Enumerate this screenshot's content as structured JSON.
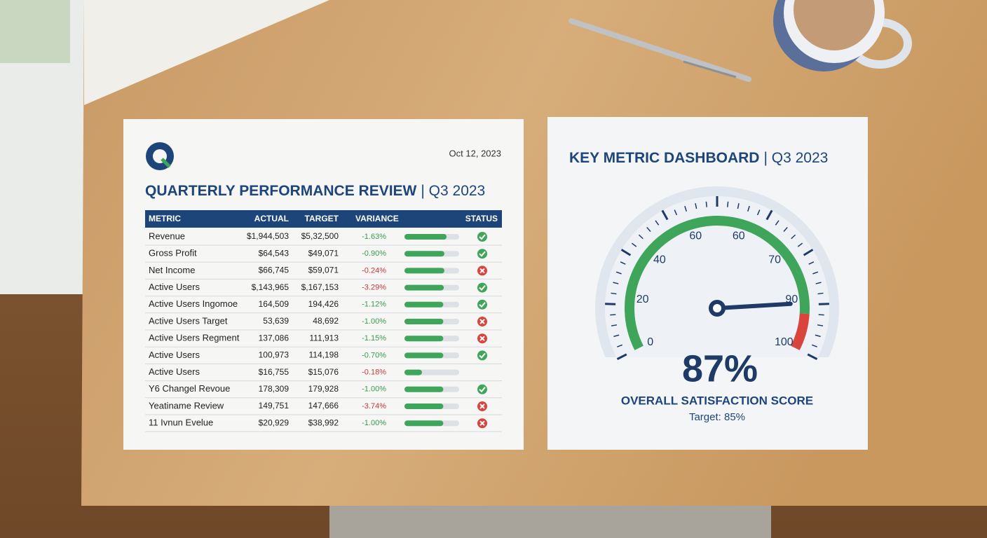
{
  "report": {
    "date": "Oct 12, 2023",
    "title": "QUARTERLY PERFORMANCE REVIEW",
    "period": "| Q3 2023",
    "table": {
      "headers": [
        "METRIC",
        "ACTUAL",
        "TARGET",
        "VARIANCE",
        "STATUS"
      ],
      "rows": [
        {
          "metric": "Revenue",
          "actual": "$1,944,503",
          "target": "$5,32,500",
          "variance": "-1.63%",
          "variance_color": "#3a9a4e",
          "progress": 77,
          "met": true
        },
        {
          "metric": "Gross Profit",
          "actual": "$64,543",
          "target": "$49,071",
          "variance": "-0.90%",
          "variance_color": "#3a9a4e",
          "progress": 73,
          "met": true
        },
        {
          "metric": "Net Income",
          "actual": "$66,745",
          "target": "$59,071",
          "variance": "-0.24%",
          "variance_color": "#c8383a",
          "progress": 73,
          "met": false
        },
        {
          "metric": "Active Users",
          "actual": "$,143,965",
          "target": "$,167,153",
          "variance": "-3.29%",
          "variance_color": "#c8383a",
          "progress": 72,
          "met": true
        },
        {
          "metric": "Active Users Ingomoe",
          "actual": "164,509",
          "target": "194,426",
          "variance": "-1.12%",
          "variance_color": "#3a9a4e",
          "progress": 71,
          "met": true
        },
        {
          "metric": "Active Users Target",
          "actual": "53,639",
          "target": "48,692",
          "variance": "-1.00%",
          "variance_color": "#3a9a4e",
          "progress": 71,
          "met": false
        },
        {
          "metric": "Active Users Regment",
          "actual": "137,086",
          "target": "111,913",
          "variance": "-1.15%",
          "variance_color": "#3a9a4e",
          "progress": 71,
          "met": false
        },
        {
          "metric": "Active Users",
          "actual": "100,973",
          "target": "114,198",
          "variance": "-0.70%",
          "variance_color": "#3a9a4e",
          "progress": 71,
          "met": true
        },
        {
          "metric": "Active Users",
          "actual": "$16,755",
          "target": "$15,076",
          "variance": "-0.18%",
          "variance_color": "#c8383a",
          "progress": 32,
          "met": null
        },
        {
          "metric": "Y6 Changel Revoue",
          "actual": "178,309",
          "target": "179,928",
          "variance": "-1.00%",
          "variance_color": "#3a9a4e",
          "progress": 71,
          "met": true
        },
        {
          "metric": "Yeatiname Review",
          "actual": "149,751",
          "target": "147,666",
          "variance": "-3.74%",
          "variance_color": "#c8383a",
          "progress": 71,
          "met": false
        },
        {
          "metric": "11 Ivnun Evelue",
          "actual": "$20,929",
          "target": "$38,992",
          "variance": "-1.00%",
          "variance_color": "#3a9a4e",
          "progress": 71,
          "met": false
        }
      ]
    }
  },
  "dashboard": {
    "title": "KEY METRIC DASHBOARD",
    "period": "| Q3 2023",
    "gauge": {
      "value": 87,
      "label": "87%",
      "range": [
        0,
        100
      ],
      "scale_labels": [
        0,
        20,
        40,
        60,
        60,
        70,
        90,
        100
      ],
      "bands": [
        {
          "to": 90,
          "color": "#3fa55a"
        },
        {
          "to": 100,
          "color": "#d9453d"
        }
      ]
    },
    "caption": "OVERALL SATISFACTION SCORE",
    "target": "Target: 85%"
  }
}
